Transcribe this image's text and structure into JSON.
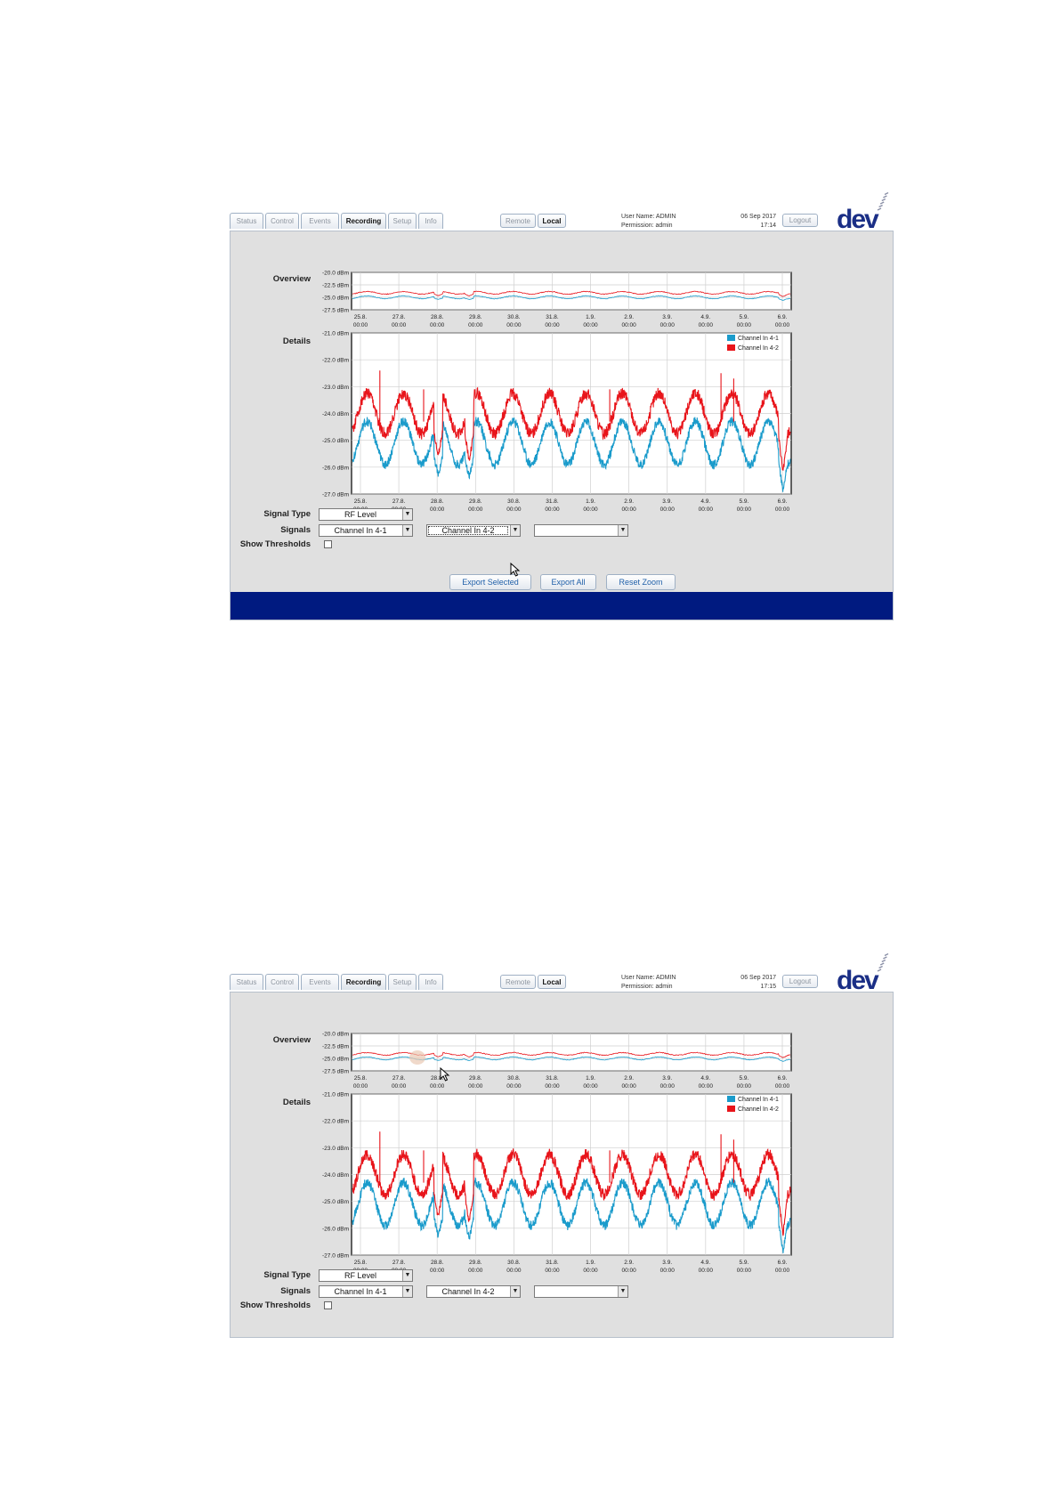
{
  "screenshots": [
    {
      "tabs": [
        "Status",
        "Control",
        "Events",
        "Recording",
        "Setup",
        "Info"
      ],
      "active_tab": "Recording",
      "mode_buttons": [
        "Remote",
        "Local"
      ],
      "active_mode": "Local",
      "user": {
        "name_line": "User Name: ADMIN",
        "permission_line": "Permission: admin"
      },
      "date": "06 Sep 2017",
      "time": "17:14",
      "logout_label": "Logout",
      "logo_text": "dev",
      "overview_label": "Overview",
      "details_label": "Details",
      "signal_type_label": "Signal Type",
      "signal_type_value": "RF Level",
      "signals_label": "Signals",
      "signal_1": "Channel In 4-1",
      "signal_2": "Channel In 4-2",
      "signal_3": "",
      "show_thresholds_label": "Show Thresholds",
      "show_thresholds_checked": false,
      "buttons": {
        "export_selected": "Export Selected",
        "export_all": "Export All",
        "reset_zoom": "Reset Zoom"
      },
      "has_footer": true
    },
    {
      "tabs": [
        "Status",
        "Control",
        "Events",
        "Recording",
        "Setup",
        "Info"
      ],
      "active_tab": "Recording",
      "mode_buttons": [
        "Remote",
        "Local"
      ],
      "active_mode": "Local",
      "user": {
        "name_line": "User Name: ADMIN",
        "permission_line": "Permission: admin"
      },
      "date": "06 Sep 2017",
      "time": "17:15",
      "logout_label": "Logout",
      "logo_text": "dev",
      "overview_label": "Overview",
      "details_label": "Details",
      "signal_type_label": "Signal Type",
      "signal_type_value": "RF Level",
      "signals_label": "Signals",
      "signal_1": "Channel In 4-1",
      "signal_2": "Channel In 4-2",
      "signal_3": "",
      "show_thresholds_label": "Show Thresholds",
      "show_thresholds_checked": false,
      "overview_selection_highlight": true,
      "has_footer": false
    }
  ],
  "chart_data": [
    {
      "type": "line",
      "name": "overview",
      "ylim": [
        -27.5,
        -20.0
      ],
      "y_ticks": [
        "-20.0 dBm",
        "-22.5 dBm",
        "-25.0 dBm",
        "-27.5 dBm"
      ],
      "y_tick_values": [
        -20.0,
        -22.5,
        -25.0,
        -27.5
      ],
      "x_ticks": [
        [
          "25.8.",
          "00:00"
        ],
        [
          "27.8.",
          "00:00"
        ],
        [
          "28.8.",
          "00:00"
        ],
        [
          "29.8.",
          "00:00"
        ],
        [
          "30.8.",
          "00:00"
        ],
        [
          "31.8.",
          "00:00"
        ],
        [
          "1.9.",
          "00:00"
        ],
        [
          "2.9.",
          "00:00"
        ],
        [
          "3.9.",
          "00:00"
        ],
        [
          "4.9.",
          "00:00"
        ],
        [
          "5.9.",
          "00:00"
        ],
        [
          "6.9.",
          "00:00"
        ]
      ],
      "grid": true,
      "series": [
        {
          "name": "Channel In 4-1",
          "color": "#1a9bcb"
        },
        {
          "name": "Channel In 4-2",
          "color": "#e8141a"
        }
      ]
    },
    {
      "type": "line",
      "name": "details",
      "ylim": [
        -27.0,
        -21.0
      ],
      "y_ticks": [
        "-21.0 dBm",
        "-22.0 dBm",
        "-23.0 dBm",
        "-24.0 dBm",
        "-25.0 dBm",
        "-26.0 dBm",
        "-27.0 dBm"
      ],
      "y_tick_values": [
        -21.0,
        -22.0,
        -23.0,
        -24.0,
        -25.0,
        -26.0,
        -27.0
      ],
      "x_ticks": [
        [
          "25.8.",
          "00:00"
        ],
        [
          "27.8.",
          "00:00"
        ],
        [
          "28.8.",
          "00:00"
        ],
        [
          "29.8.",
          "00:00"
        ],
        [
          "30.8.",
          "00:00"
        ],
        [
          "31.8.",
          "00:00"
        ],
        [
          "1.9.",
          "00:00"
        ],
        [
          "2.9.",
          "00:00"
        ],
        [
          "3.9.",
          "00:00"
        ],
        [
          "4.9.",
          "00:00"
        ],
        [
          "5.9.",
          "00:00"
        ],
        [
          "6.9.",
          "00:00"
        ]
      ],
      "grid": true,
      "legend": {
        "position": "top-right",
        "entries": [
          "Channel In 4-1",
          "Channel In 4-2"
        ]
      },
      "series": [
        {
          "name": "Channel In 4-1",
          "color": "#1a9bcb",
          "x_days_label": "time",
          "waveform": {
            "mean": -25.1,
            "amplitude": 0.8,
            "noise": 0.18,
            "dips": [
              [
                2.35,
                -26.3
              ],
              [
                3.2,
                -26.4
              ],
              [
                11.8,
                -26.9
              ]
            ]
          }
        },
        {
          "name": "Channel In 4-2",
          "color": "#e8141a",
          "waveform": {
            "mean": -24.0,
            "amplitude": 0.75,
            "noise": 0.22,
            "dips": [
              [
                2.35,
                -25.6
              ],
              [
                3.2,
                -25.8
              ],
              [
                11.8,
                -26.2
              ]
            ],
            "spikes": [
              [
                0.75,
                -22.4
              ],
              [
                1.95,
                -23.1
              ],
              [
                7.05,
                -23.1
              ],
              [
                10.1,
                -22.5
              ],
              [
                10.45,
                -22.7
              ]
            ]
          }
        }
      ]
    }
  ]
}
